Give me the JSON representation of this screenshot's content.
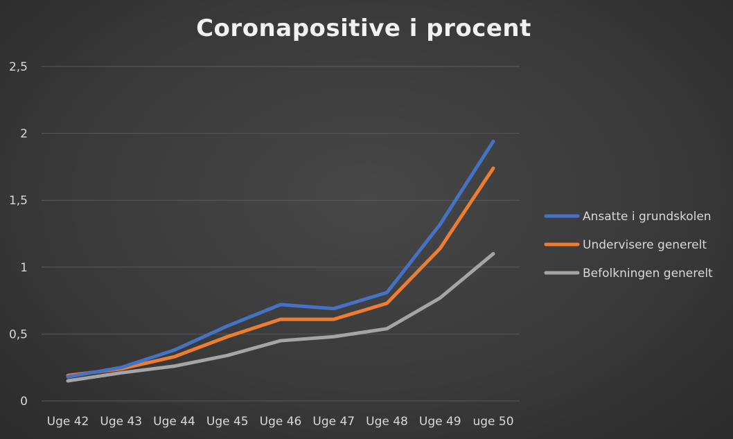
{
  "chart_data": {
    "type": "line",
    "title": "Coronapositive i procent",
    "xlabel": "",
    "ylabel": "",
    "categories": [
      "Uge 42",
      "Uge 43",
      "Uge 44",
      "Uge 45",
      "Uge 46",
      "Uge 47",
      "Uge 48",
      "Uge 49",
      "uge 50"
    ],
    "ylim": [
      0,
      2.5
    ],
    "y_ticks": [
      0,
      0.5,
      1,
      1.5,
      2,
      2.5
    ],
    "y_tick_labels": [
      "0",
      "0,5",
      "1",
      "1,5",
      "2",
      "2,5"
    ],
    "grid": true,
    "legend_position": "right",
    "series": [
      {
        "name": "Ansatte i grundskolen",
        "color": "#4472c4",
        "values": [
          0.18,
          0.25,
          0.38,
          0.56,
          0.72,
          0.69,
          0.81,
          1.32,
          1.94
        ]
      },
      {
        "name": "Undervisere generelt",
        "color": "#ed7d31",
        "values": [
          0.19,
          0.24,
          0.33,
          0.48,
          0.61,
          0.61,
          0.73,
          1.14,
          1.74
        ]
      },
      {
        "name": "Befolkningen generelt",
        "color": "#a5a5a5",
        "values": [
          0.15,
          0.21,
          0.26,
          0.34,
          0.45,
          0.48,
          0.54,
          0.77,
          1.1
        ]
      }
    ]
  }
}
